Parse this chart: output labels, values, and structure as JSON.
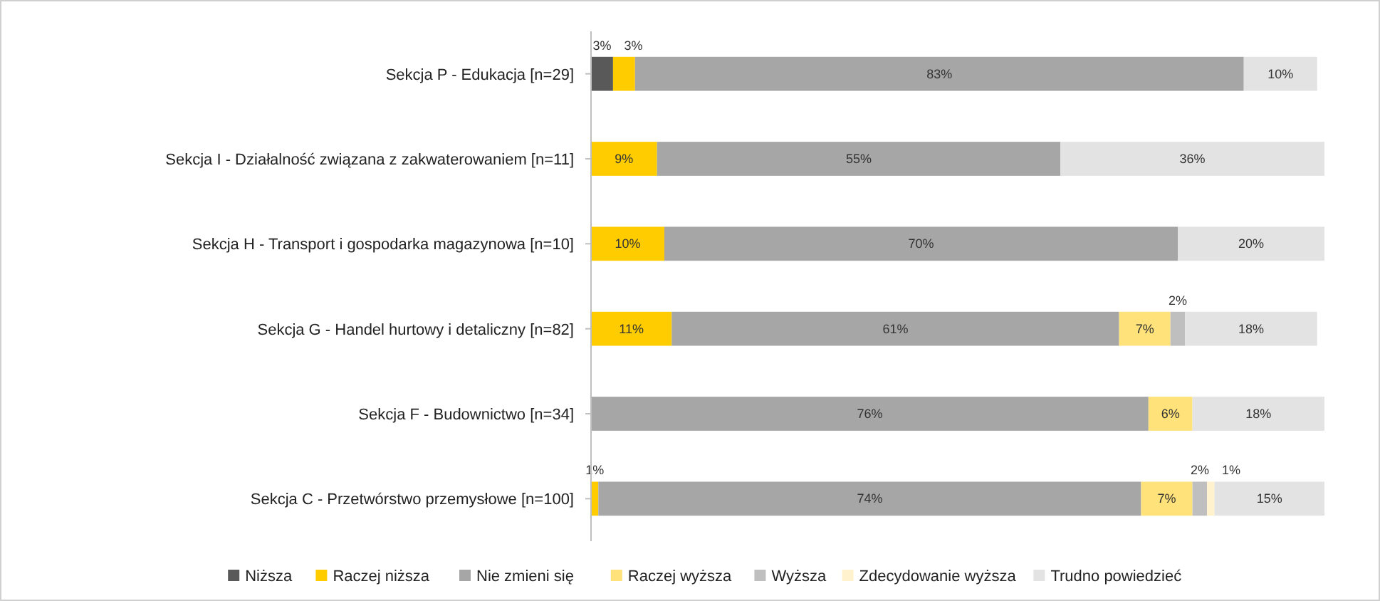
{
  "chart_data": {
    "type": "bar",
    "orientation": "horizontal",
    "stacked": true,
    "legend": "bottom",
    "tick_labels": "y",
    "xlim": [
      0,
      100
    ],
    "categories": [
      "Sekcja P - Edukacja [n=29]",
      "Sekcja I - Działalność związana z zakwaterowaniem  [n=11]",
      "Sekcja H - Transport i gospodarka magazynowa [n=10]",
      "Sekcja G - Handel hurtowy i detaliczny [n=82]",
      "Sekcja F - Budownictwo [n=34]",
      "Sekcja C - Przetwórstwo przemysłowe [n=100]"
    ],
    "series": [
      {
        "name": "Niższa",
        "color": "#595959",
        "values": [
          3,
          null,
          null,
          null,
          null,
          null
        ],
        "value_labels": [
          "3%",
          null,
          null,
          null,
          null,
          null
        ]
      },
      {
        "name": "Raczej niższa",
        "color": "#ffcc00",
        "values": [
          3,
          9,
          10,
          11,
          null,
          1
        ],
        "value_labels": [
          "3%",
          "9%",
          "10%",
          "11%",
          null,
          "1%"
        ]
      },
      {
        "name": "Nie zmieni się",
        "color": "#a6a6a6",
        "values": [
          83,
          55,
          70,
          61,
          76,
          74
        ],
        "value_labels": [
          "83%",
          "55%",
          "70%",
          "61%",
          "76%",
          "74%"
        ]
      },
      {
        "name": "Raczej wyższa",
        "color": "#ffe27a",
        "values": [
          null,
          null,
          null,
          7,
          6,
          7
        ],
        "value_labels": [
          null,
          null,
          null,
          "7%",
          "6%",
          "7%"
        ]
      },
      {
        "name": "Wyższa",
        "color": "#bfbfbf",
        "values": [
          null,
          null,
          null,
          2,
          null,
          2
        ],
        "value_labels": [
          null,
          null,
          null,
          "2%",
          null,
          "2%"
        ]
      },
      {
        "name": "Zdecydowanie wyższa",
        "color": "#fff2cc",
        "values": [
          null,
          null,
          null,
          null,
          null,
          1
        ],
        "value_labels": [
          null,
          null,
          null,
          null,
          null,
          "1%"
        ]
      },
      {
        "name": "Trudno powiedzieć",
        "color": "#e3e3e3",
        "values": [
          10,
          36,
          20,
          18,
          18,
          15
        ],
        "value_labels": [
          "10%",
          "36%",
          "20%",
          "18%",
          "18%",
          "15%"
        ]
      }
    ]
  }
}
